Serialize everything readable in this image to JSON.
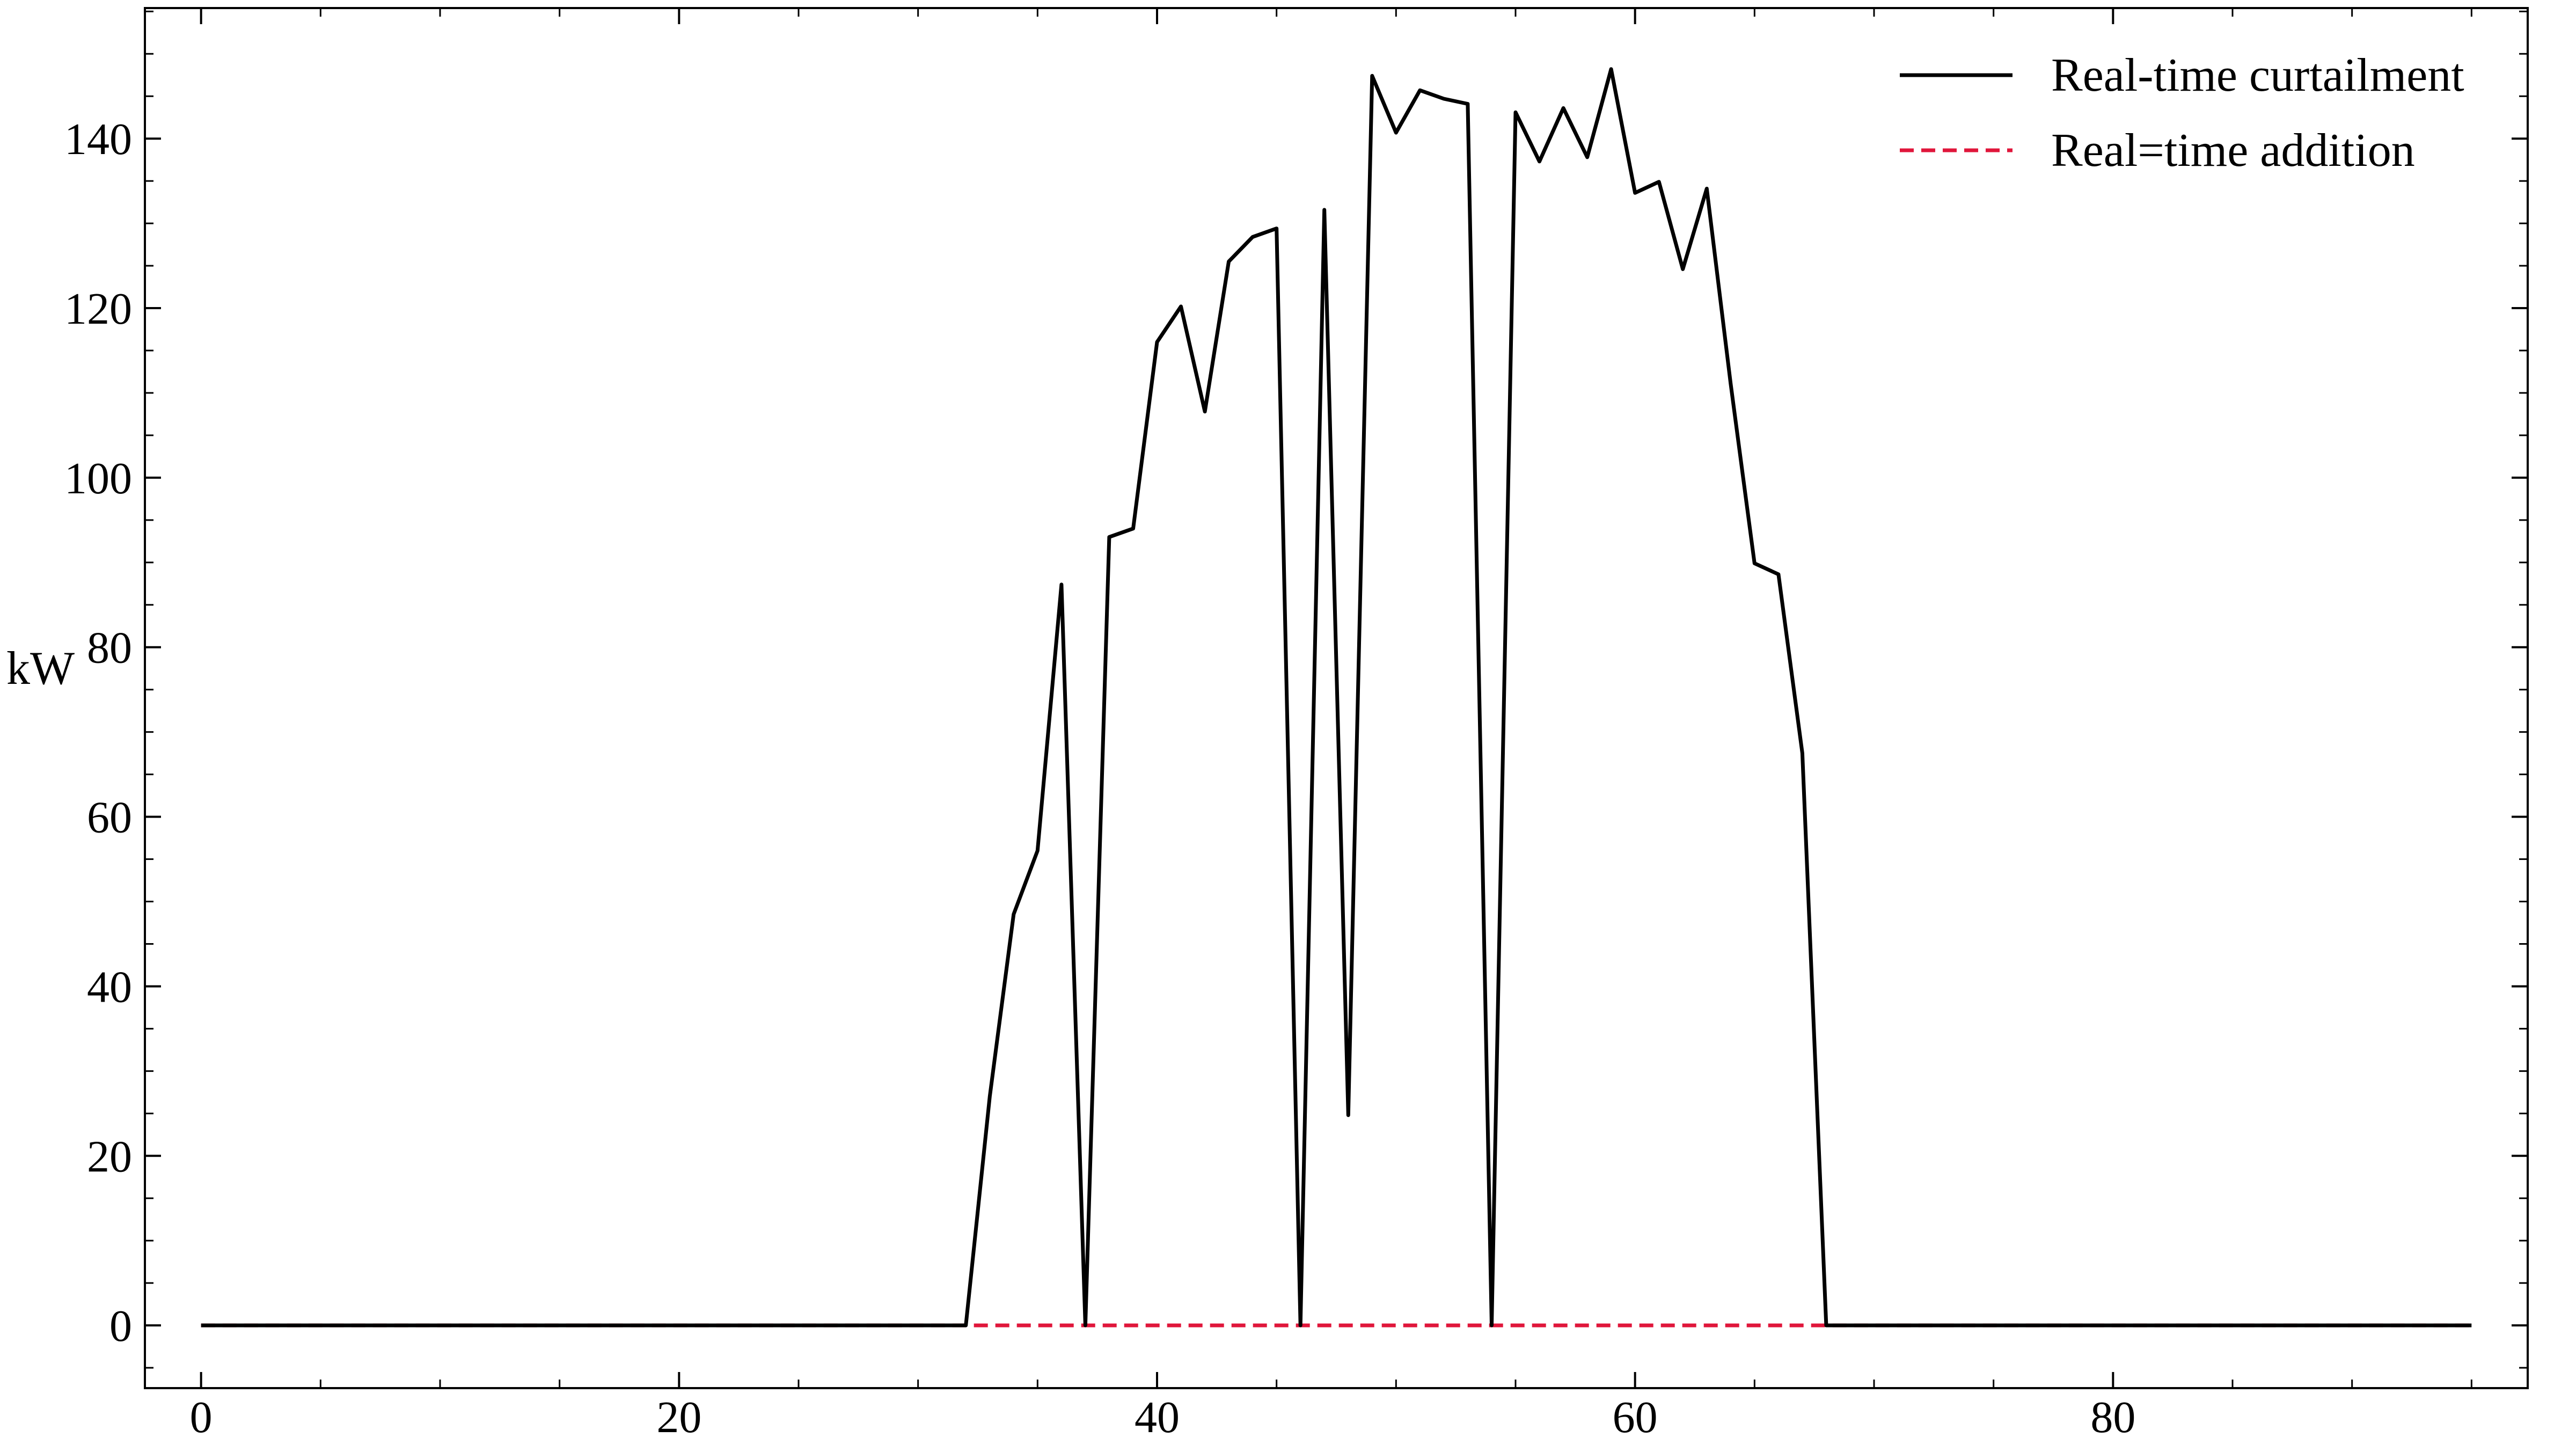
{
  "chart_data": {
    "type": "line",
    "title": "",
    "xlabel": "",
    "ylabel": "kW",
    "xlim": [
      -2.35,
      97.35
    ],
    "ylim": [
      -7.4,
      155.4
    ],
    "x_ticks": [
      0,
      20,
      40,
      60,
      80
    ],
    "y_ticks": [
      0,
      20,
      40,
      60,
      80,
      100,
      120,
      140
    ],
    "x_tick_labels": [
      "0",
      "20",
      "40",
      "60",
      "80"
    ],
    "y_tick_labels": [
      "0",
      "20",
      "40",
      "60",
      "80",
      "100",
      "120",
      "140"
    ],
    "grid": false,
    "legend": {
      "position": "top-right"
    },
    "x": [
      0,
      1,
      2,
      3,
      4,
      5,
      6,
      7,
      8,
      9,
      10,
      11,
      12,
      13,
      14,
      15,
      16,
      17,
      18,
      19,
      20,
      21,
      22,
      23,
      24,
      25,
      26,
      27,
      28,
      29,
      30,
      31,
      32,
      33,
      34,
      35,
      36,
      37,
      38,
      39,
      40,
      41,
      42,
      43,
      44,
      45,
      46,
      47,
      48,
      49,
      50,
      51,
      52,
      53,
      54,
      55,
      56,
      57,
      58,
      59,
      60,
      61,
      62,
      63,
      64,
      65,
      66,
      67,
      68,
      69,
      70,
      71,
      72,
      73,
      74,
      75,
      76,
      77,
      78,
      79,
      80,
      81,
      82,
      83,
      84,
      85,
      86,
      87,
      88,
      89,
      90,
      91,
      92,
      93,
      94,
      95
    ],
    "series": [
      {
        "name": "Real-time curtailment",
        "color": "#000000",
        "style": "solid",
        "values": [
          0,
          0,
          0,
          0,
          0,
          0,
          0,
          0,
          0,
          0,
          0,
          0,
          0,
          0,
          0,
          0,
          0,
          0,
          0,
          0,
          0,
          0,
          0,
          0,
          0,
          0,
          0,
          0,
          0,
          0,
          0,
          0,
          0,
          27,
          48.5,
          56,
          87.4,
          0,
          93,
          94,
          116,
          120.2,
          107.8,
          125.5,
          128.4,
          129.4,
          0,
          131.6,
          24.8,
          147.4,
          140.7,
          145.7,
          144.7,
          144.1,
          0,
          143.1,
          137.3,
          143.6,
          137.8,
          148.2,
          133.6,
          134.9,
          124.6,
          134.1,
          111.1,
          89.9,
          88.6,
          67.5,
          0,
          0,
          0,
          0,
          0,
          0,
          0,
          0,
          0,
          0,
          0,
          0,
          0,
          0,
          0,
          0,
          0,
          0,
          0,
          0,
          0,
          0,
          0,
          0,
          0,
          0,
          0,
          0
        ]
      },
      {
        "name": "Real=time addition",
        "color": "#e0163b",
        "style": "dashed",
        "values": [
          0,
          0,
          0,
          0,
          0,
          0,
          0,
          0,
          0,
          0,
          0,
          0,
          0,
          0,
          0,
          0,
          0,
          0,
          0,
          0,
          0,
          0,
          0,
          0,
          0,
          0,
          0,
          0,
          0,
          0,
          0,
          0,
          0,
          0,
          0,
          0,
          0,
          0,
          0,
          0,
          0,
          0,
          0,
          0,
          0,
          0,
          0,
          0,
          0,
          0,
          0,
          0,
          0,
          0,
          0,
          0,
          0,
          0,
          0,
          0,
          0,
          0,
          0,
          0,
          0,
          0,
          0,
          0,
          0,
          0,
          0,
          0,
          0,
          0,
          0,
          0,
          0,
          0,
          0,
          0,
          0,
          0,
          0,
          0,
          0,
          0,
          0,
          0,
          0,
          0,
          0,
          0,
          0,
          0,
          0,
          0
        ]
      }
    ]
  }
}
